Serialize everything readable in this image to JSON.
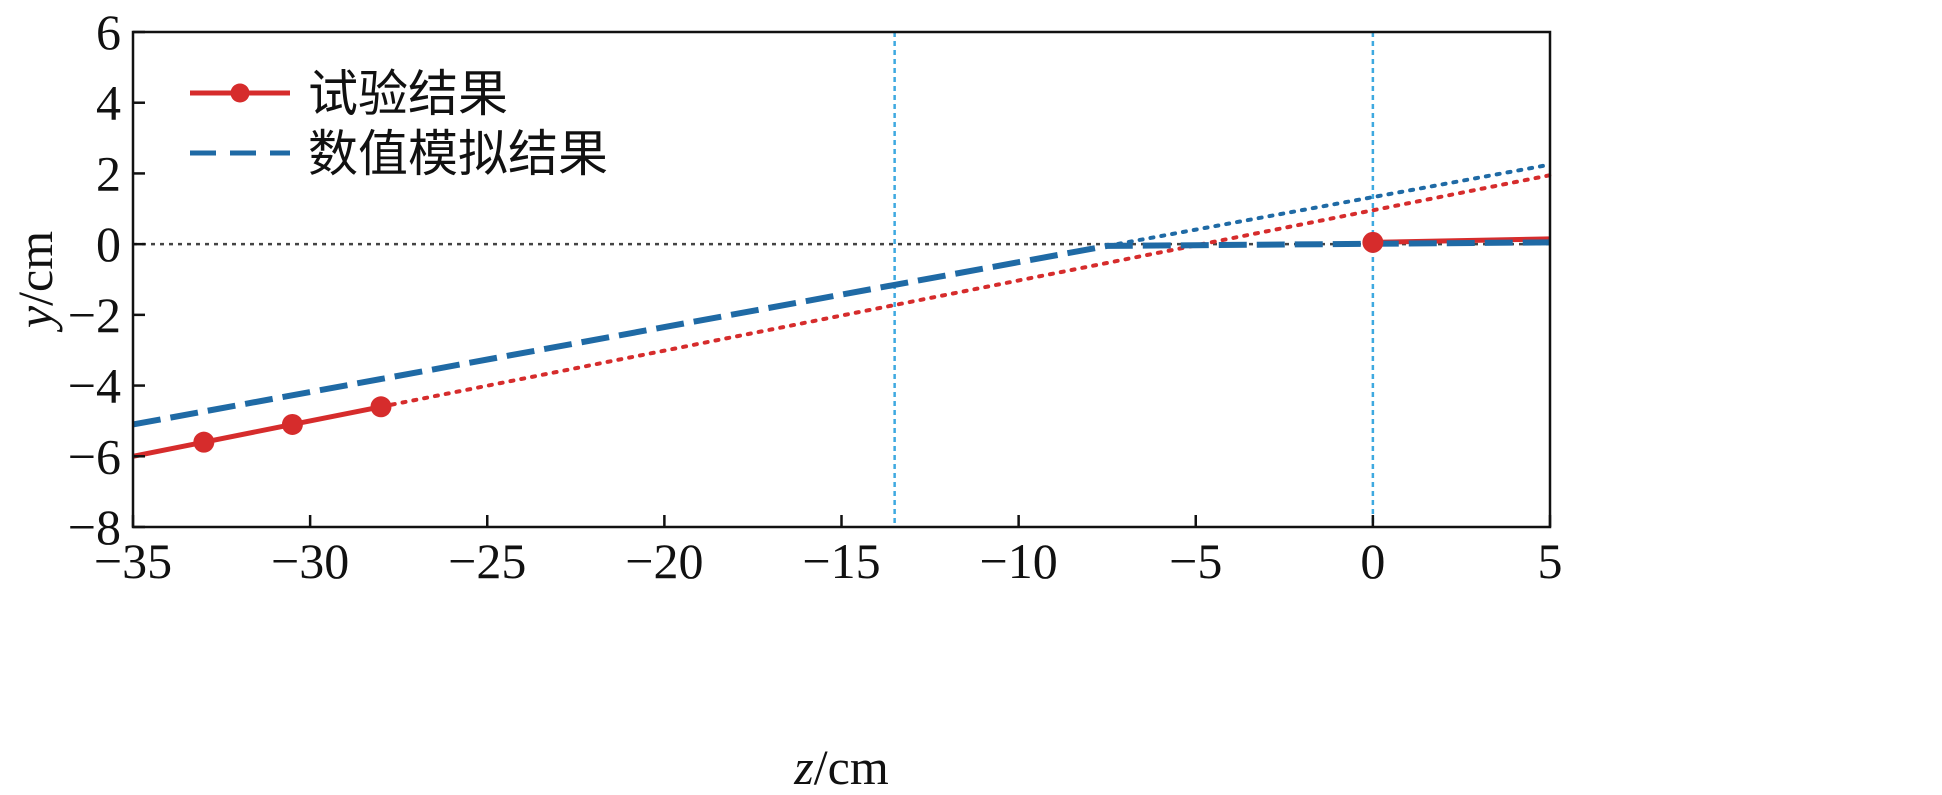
{
  "chart_data": {
    "type": "line",
    "xlabel": {
      "var": "z",
      "unit": "/cm"
    },
    "ylabel": {
      "var": "y",
      "unit": "/cm"
    },
    "xlim": [
      -35,
      5
    ],
    "ylim": [
      -8,
      6
    ],
    "xticks": [
      -35,
      -30,
      -25,
      -20,
      -15,
      -10,
      -5,
      0,
      5
    ],
    "yticks": [
      -8,
      -6,
      -4,
      -2,
      0,
      2,
      4,
      6
    ],
    "xtick_labels": [
      "−35",
      "−30",
      "−25",
      "−20",
      "−15",
      "−10",
      "−5",
      "0",
      "5"
    ],
    "ytick_labels": [
      "−8",
      "−6",
      "−4",
      "−2",
      "0",
      "2",
      "4",
      "6"
    ],
    "legend_position": "top-left",
    "series": [
      {
        "name": "试验结果",
        "color": "#d62c2c",
        "style": "solid-marker",
        "segments": [
          {
            "x": [
              -35,
              -33,
              -30.5,
              -28
            ],
            "y": [
              -6.0,
              -5.6,
              -5.1,
              -4.6
            ]
          },
          {
            "x": [
              0,
              5
            ],
            "y": [
              0.05,
              0.15
            ]
          }
        ],
        "markers": {
          "x": [
            -33,
            -30.5,
            -28,
            0
          ],
          "y": [
            -5.6,
            -5.1,
            -4.6,
            0.05
          ]
        },
        "extrapolation": {
          "x": [
            -28,
            5
          ],
          "y": [
            -4.6,
            1.95
          ]
        }
      },
      {
        "name": "数值模拟结果",
        "color": "#1f6aa5",
        "style": "dashed",
        "segments": [
          {
            "x": [
              -35,
              -7.5,
              5
            ],
            "y": [
              -5.1,
              -0.05,
              0.05
            ]
          }
        ],
        "extrapolation": {
          "x": [
            -7.5,
            5
          ],
          "y": [
            -0.05,
            2.25
          ]
        }
      }
    ],
    "reference_lines": {
      "horizontal_y": 0,
      "vertical_x": [
        -13.5,
        0
      ],
      "vertical_color": "#3ea9e0",
      "horizontal_color": "#444444"
    }
  }
}
